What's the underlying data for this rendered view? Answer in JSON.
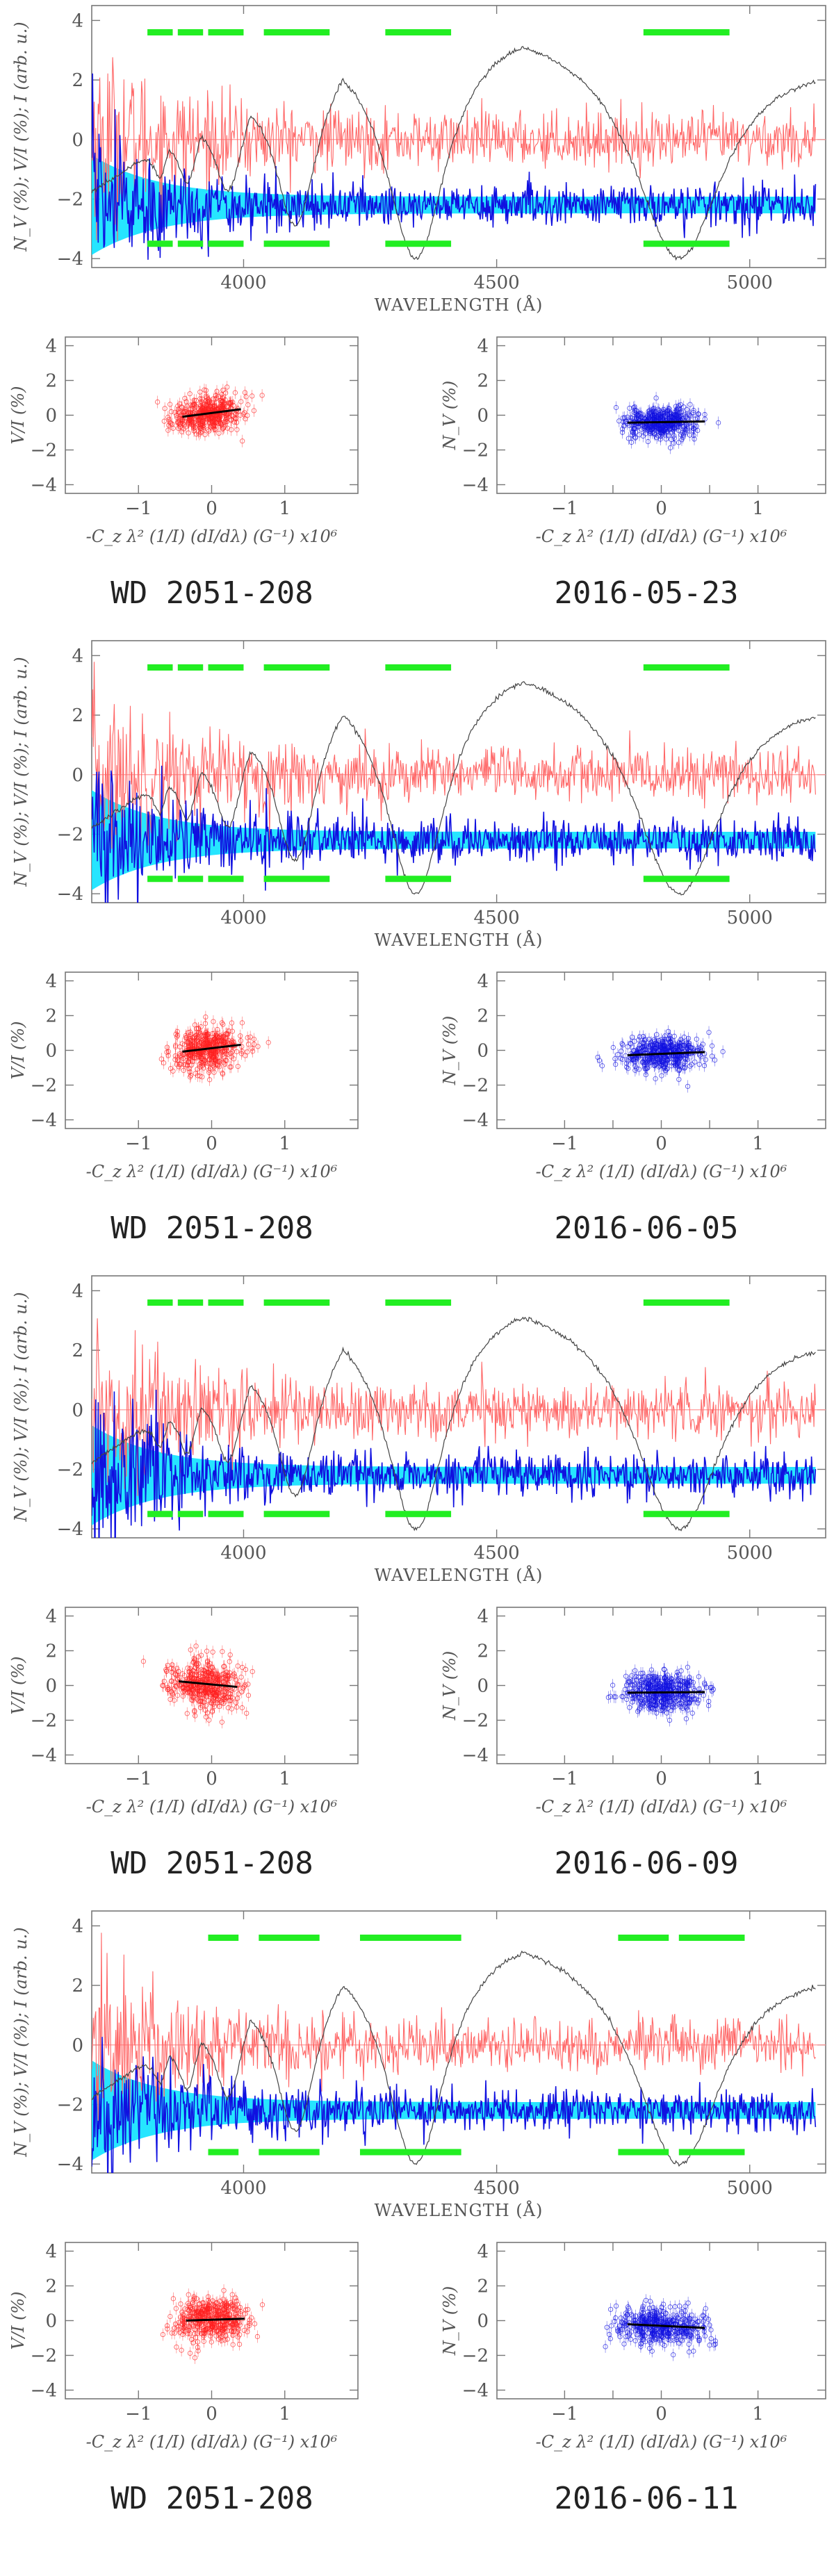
{
  "chart_data": [
    {
      "type": "panel_group",
      "caption_star": "WD 2051-208",
      "caption_date": "2016-05-23",
      "spectrum": {
        "type": "line",
        "xlabel": "WAVELENGTH (Å)",
        "ylabel": "N_V (%); V/I (%); I (arb. u.)",
        "xlim": [
          3700,
          5150
        ],
        "ylim": [
          -4.3,
          4.5
        ],
        "xticks": [
          4000,
          4500,
          5000
        ],
        "yticks": [
          -4,
          -2,
          0,
          2,
          4
        ],
        "mask_segments": [
          [
            3810,
            3860
          ],
          [
            3870,
            3920
          ],
          [
            3930,
            4000
          ],
          [
            4040,
            4170
          ],
          [
            4280,
            4410
          ],
          [
            4790,
            4960
          ]
        ],
        "mask_levels": [
          3.6,
          -3.5
        ],
        "intensity_profile": {
          "continuum": 4.0,
          "baseline": -4.0
        },
        "v_over_i_offset": 0,
        "null_offset": -2.2,
        "series": [
          {
            "name": "I (arb. u.)",
            "color": "#444444"
          },
          {
            "name": "V/I (%)",
            "color": "#ff6666"
          },
          {
            "name": "N_V (%)",
            "color": "#1010e0"
          },
          {
            "name": "error band",
            "color": "#00e0ff"
          }
        ]
      },
      "scatter_vi": {
        "type": "scatter",
        "color": "#ff2020",
        "xlabel": "-C_z λ² (1/I) (dI/dλ) (G⁻¹) x10⁶",
        "ylabel": "V/I (%)",
        "xlim": [
          -2,
          2
        ],
        "ylim": [
          -4.5,
          4.5
        ],
        "xticks": [
          -1,
          0,
          1
        ],
        "yticks": [
          -4,
          -2,
          0,
          2,
          4
        ],
        "center": [
          -0.05,
          0.1
        ],
        "spread": [
          0.25,
          0.55
        ],
        "fit_slope": 1.2
      },
      "scatter_nv": {
        "type": "scatter",
        "color": "#1010e0",
        "xlabel": "-C_z λ² (1/I) (dI/dλ) (G⁻¹) x10⁶",
        "ylabel": "N_V (%)",
        "xlim": [
          -1.7,
          1.7
        ],
        "ylim": [
          -4.5,
          4.5
        ],
        "xticks": [
          -1,
          -0.5,
          0,
          0.5,
          1
        ],
        "xticklabels": [
          "-1",
          "",
          "0",
          "",
          "1"
        ],
        "yticks": [
          -4,
          -2,
          0,
          2,
          4
        ],
        "center": [
          0,
          -0.4
        ],
        "spread": [
          0.2,
          0.45
        ],
        "fit_slope": 0.2
      }
    },
    {
      "type": "panel_group",
      "caption_star": "WD 2051-208",
      "caption_date": "2016-06-05",
      "spectrum": {
        "type": "line",
        "xlabel": "WAVELENGTH (Å)",
        "ylabel": "N_V (%); V/I (%); I (arb. u.)",
        "xlim": [
          3700,
          5150
        ],
        "ylim": [
          -4.3,
          4.5
        ],
        "xticks": [
          4000,
          4500,
          5000
        ],
        "yticks": [
          -4,
          -2,
          0,
          2,
          4
        ],
        "mask_segments": [
          [
            3810,
            3860
          ],
          [
            3870,
            3920
          ],
          [
            3930,
            4000
          ],
          [
            4040,
            4170
          ],
          [
            4280,
            4410
          ],
          [
            4790,
            4960
          ]
        ],
        "mask_levels": [
          3.6,
          -3.5
        ],
        "intensity_profile": {
          "continuum": 4.0,
          "baseline": -4.0
        },
        "v_over_i_offset": 0,
        "null_offset": -2.2,
        "series": [
          {
            "name": "I (arb. u.)",
            "color": "#444444"
          },
          {
            "name": "V/I (%)",
            "color": "#ff6666"
          },
          {
            "name": "N_V (%)",
            "color": "#1010e0"
          },
          {
            "name": "error band",
            "color": "#00e0ff"
          }
        ]
      },
      "scatter_vi": {
        "type": "scatter",
        "color": "#ff2020",
        "xlabel": "-C_z λ² (1/I) (dI/dλ) (G⁻¹) x10⁶",
        "ylabel": "V/I (%)",
        "xlim": [
          -2,
          2
        ],
        "ylim": [
          -4.5,
          4.5
        ],
        "xticks": [
          -1,
          0,
          1
        ],
        "yticks": [
          -4,
          -2,
          0,
          2,
          4
        ],
        "center": [
          -0.05,
          0.1
        ],
        "spread": [
          0.25,
          0.6
        ],
        "fit_slope": 1.1
      },
      "scatter_nv": {
        "type": "scatter",
        "color": "#1010e0",
        "xlabel": "-C_z λ² (1/I) (dI/dλ) (G⁻¹) x10⁶",
        "ylabel": "N_V (%)",
        "xlim": [
          -1.7,
          1.7
        ],
        "ylim": [
          -4.5,
          4.5
        ],
        "xticks": [
          -1,
          -0.5,
          0,
          0.5,
          1
        ],
        "xticklabels": [
          "-1",
          "",
          "0",
          "",
          "1"
        ],
        "yticks": [
          -4,
          -2,
          0,
          2,
          4
        ],
        "center": [
          0,
          -0.2
        ],
        "spread": [
          0.2,
          0.5
        ],
        "fit_slope": 0.5
      }
    },
    {
      "type": "panel_group",
      "caption_star": "WD 2051-208",
      "caption_date": "2016-06-09",
      "spectrum": {
        "type": "line",
        "xlabel": "WAVELENGTH (Å)",
        "ylabel": "N_V (%); V/I (%); I (arb. u.)",
        "xlim": [
          3700,
          5150
        ],
        "ylim": [
          -4.3,
          4.5
        ],
        "xticks": [
          4000,
          4500,
          5000
        ],
        "yticks": [
          -4,
          -2,
          0,
          2,
          4
        ],
        "mask_segments": [
          [
            3810,
            3860
          ],
          [
            3870,
            3920
          ],
          [
            3930,
            4000
          ],
          [
            4040,
            4170
          ],
          [
            4280,
            4410
          ],
          [
            4790,
            4960
          ]
        ],
        "mask_levels": [
          3.6,
          -3.5
        ],
        "intensity_profile": {
          "continuum": 4.0,
          "baseline": -4.0
        },
        "v_over_i_offset": 0,
        "null_offset": -2.2,
        "series": [
          {
            "name": "I (arb. u.)",
            "color": "#444444"
          },
          {
            "name": "V/I (%)",
            "color": "#ff6666"
          },
          {
            "name": "N_V (%)",
            "color": "#1010e0"
          },
          {
            "name": "error band",
            "color": "#00e0ff"
          }
        ]
      },
      "scatter_vi": {
        "type": "scatter",
        "color": "#ff2020",
        "xlabel": "-C_z λ² (1/I) (dI/dλ) (G⁻¹) x10⁶",
        "ylabel": "V/I (%)",
        "xlim": [
          -2,
          2
        ],
        "ylim": [
          -4.5,
          4.5
        ],
        "xticks": [
          -1,
          0,
          1
        ],
        "yticks": [
          -4,
          -2,
          0,
          2,
          4
        ],
        "center": [
          -0.1,
          0.1
        ],
        "spread": [
          0.25,
          0.7
        ],
        "fit_slope": -0.9
      },
      "scatter_nv": {
        "type": "scatter",
        "color": "#1010e0",
        "xlabel": "-C_z λ² (1/I) (dI/dλ) (G⁻¹) x10⁶",
        "ylabel": "N_V (%)",
        "xlim": [
          -1.7,
          1.7
        ],
        "ylim": [
          -4.5,
          4.5
        ],
        "xticks": [
          -1,
          -0.5,
          0,
          0.5,
          1
        ],
        "xticklabels": [
          "-1",
          "",
          "0",
          "",
          "1"
        ],
        "yticks": [
          -4,
          -2,
          0,
          2,
          4
        ],
        "center": [
          0,
          -0.4
        ],
        "spread": [
          0.2,
          0.55
        ],
        "fit_slope": 0.1
      }
    },
    {
      "type": "panel_group",
      "caption_star": "WD 2051-208",
      "caption_date": "2016-06-11",
      "spectrum": {
        "type": "line",
        "xlabel": "WAVELENGTH (Å)",
        "ylabel": "N_V (%); V/I (%); I (arb. u.)",
        "xlim": [
          3700,
          5150
        ],
        "ylim": [
          -4.3,
          4.5
        ],
        "xticks": [
          4000,
          4500,
          5000
        ],
        "yticks": [
          -4,
          -2,
          0,
          2,
          4
        ],
        "mask_segments": [
          [
            3930,
            3990
          ],
          [
            4030,
            4150
          ],
          [
            4230,
            4430
          ],
          [
            4740,
            4840
          ],
          [
            4860,
            4990
          ]
        ],
        "mask_levels": [
          3.6,
          -3.6
        ],
        "intensity_profile": {
          "continuum": 4.0,
          "baseline": -4.0
        },
        "v_over_i_offset": 0,
        "null_offset": -2.2,
        "series": [
          {
            "name": "I (arb. u.)",
            "color": "#444444"
          },
          {
            "name": "V/I (%)",
            "color": "#ff6666"
          },
          {
            "name": "N_V (%)",
            "color": "#1010e0"
          },
          {
            "name": "error band",
            "color": "#00e0ff"
          }
        ]
      },
      "scatter_vi": {
        "type": "scatter",
        "color": "#ff2020",
        "xlabel": "-C_z λ² (1/I) (dI/dλ) (G⁻¹) x10⁶",
        "ylabel": "V/I (%)",
        "xlim": [
          -2,
          2
        ],
        "ylim": [
          -4.5,
          4.5
        ],
        "xticks": [
          -1,
          0,
          1
        ],
        "yticks": [
          -4,
          -2,
          0,
          2,
          4
        ],
        "center": [
          0,
          0.05
        ],
        "spread": [
          0.25,
          0.65
        ],
        "fit_slope": 0.3
      },
      "scatter_nv": {
        "type": "scatter",
        "color": "#1010e0",
        "xlabel": "-C_z λ² (1/I) (dI/dλ) (G⁻¹) x10⁶",
        "ylabel": "N_V (%)",
        "xlim": [
          -1.7,
          1.7
        ],
        "ylim": [
          -4.5,
          4.5
        ],
        "xticks": [
          -1,
          -0.5,
          0,
          0.5,
          1
        ],
        "xticklabels": [
          "-1",
          "",
          "0",
          "",
          "1"
        ],
        "yticks": [
          -4,
          -2,
          0,
          2,
          4
        ],
        "center": [
          0,
          -0.3
        ],
        "spread": [
          0.22,
          0.55
        ],
        "fit_slope": -0.6
      }
    }
  ]
}
